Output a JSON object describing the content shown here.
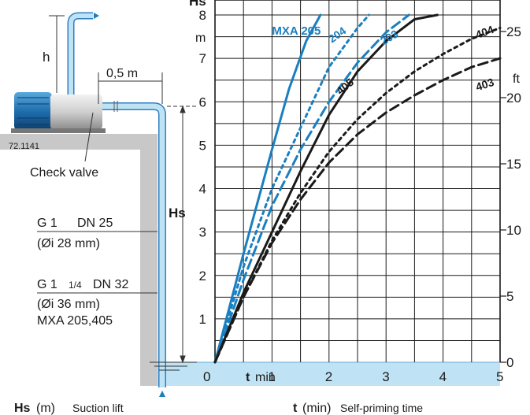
{
  "diagram": {
    "header_label": "Hs",
    "drawing_number": "72.1141",
    "dim_h": "h",
    "dim_offset": "0,5 m",
    "check_valve": "Check valve",
    "hs_marker": "Hs",
    "pipe1_size": "G 1",
    "pipe1_dn": "DN 25",
    "pipe1_inner": "(Øi 28 mm)",
    "pipe2_size": "G 1",
    "pipe2_frac": "1/4",
    "pipe2_dn": "DN 32",
    "pipe2_inner": "(Øi 36 mm)",
    "pipe2_models": "MXA 205,405"
  },
  "footer": {
    "left_bold": "Hs",
    "left_unit": "(m)",
    "left_desc": "Suction lift",
    "right_bold": "t",
    "right_unit": "(min)",
    "right_desc": "Self-priming time"
  },
  "chart_data": {
    "type": "line",
    "xlabel_bold": "t",
    "xlabel_unit": "min",
    "ylabel_left_unit": "m",
    "ylabel_right_unit": "ft",
    "xlim": [
      0,
      5
    ],
    "ylim": [
      0,
      8
    ],
    "ylim_ft": [
      0,
      26.25
    ],
    "x_ticks": [
      0,
      1,
      2,
      3,
      4,
      5
    ],
    "y_ticks": [
      1,
      2,
      3,
      4,
      5,
      6,
      7,
      8
    ],
    "y_ticks_ft": [
      0,
      5,
      10,
      15,
      20,
      25
    ],
    "grid": true,
    "series": [
      {
        "name": "MXA 205",
        "color": "#1a7fc1",
        "dash": "solid",
        "x": [
          0,
          0.5,
          1.0,
          1.3,
          1.6,
          1.85
        ],
        "y": [
          0,
          2.5,
          4.9,
          6.3,
          7.4,
          8.0
        ]
      },
      {
        "name": "204",
        "color": "#1a7fc1",
        "dash": "dotted",
        "x": [
          0,
          0.5,
          1.0,
          1.5,
          2.0,
          2.5,
          2.7
        ],
        "y": [
          0,
          2.2,
          4.0,
          5.4,
          6.8,
          7.7,
          8.0
        ]
      },
      {
        "name": "203",
        "color": "#1a7fc1",
        "dash": "dashed",
        "x": [
          0,
          0.5,
          1.0,
          1.5,
          2.0,
          2.5,
          3.0,
          3.4
        ],
        "y": [
          0,
          1.9,
          3.6,
          4.9,
          6.0,
          6.9,
          7.6,
          8.0
        ]
      },
      {
        "name": "405",
        "color": "#1a1a1a",
        "dash": "solid",
        "x": [
          0,
          0.5,
          1.0,
          1.5,
          2.0,
          2.5,
          3.0,
          3.5,
          3.9
        ],
        "y": [
          0,
          1.6,
          3.0,
          4.4,
          5.7,
          6.7,
          7.4,
          7.9,
          8.0
        ]
      },
      {
        "name": "404",
        "color": "#1a1a1a",
        "dash": "dotted",
        "x": [
          0,
          0.5,
          1.0,
          1.5,
          2.0,
          2.5,
          3.0,
          3.5,
          4.0,
          4.5,
          5.0
        ],
        "y": [
          0,
          1.5,
          2.8,
          3.9,
          4.85,
          5.6,
          6.2,
          6.7,
          7.1,
          7.45,
          7.7
        ]
      },
      {
        "name": "403",
        "color": "#1a1a1a",
        "dash": "dashed",
        "x": [
          0,
          0.5,
          1.0,
          1.5,
          2.0,
          2.5,
          3.0,
          3.5,
          4.0,
          4.5,
          5.0
        ],
        "y": [
          0,
          1.5,
          2.75,
          3.75,
          4.6,
          5.25,
          5.75,
          6.15,
          6.5,
          6.8,
          7.0
        ]
      }
    ]
  }
}
